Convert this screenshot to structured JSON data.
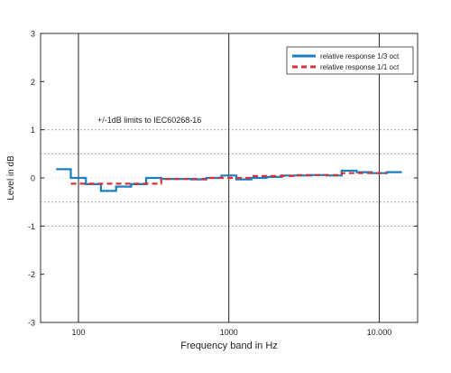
{
  "chart_data": {
    "type": "line",
    "xscale": "log",
    "xlabel": "Frequency band in Hz",
    "ylabel": "Level in dB",
    "xlim": [
      56,
      18000
    ],
    "ylim": [
      -3,
      3
    ],
    "x_ticks": [
      {
        "value": 100,
        "label": "100"
      },
      {
        "value": 1000,
        "label": "1000"
      },
      {
        "value": 10000,
        "label": "10.000"
      }
    ],
    "y_ticks": [
      {
        "value": 3,
        "label": "3"
      },
      {
        "value": 2,
        "label": "2"
      },
      {
        "value": 1,
        "label": "1"
      },
      {
        "value": 0,
        "label": "0"
      },
      {
        "value": -1,
        "label": "-1"
      },
      {
        "value": -2,
        "label": "-2"
      },
      {
        "value": -3,
        "label": "-3"
      }
    ],
    "grid": "dotted",
    "dotted_grid_y": [
      1,
      0.5,
      -0.5,
      -1
    ],
    "limit_annotation": "+/-1dB limits to IEC60268-16",
    "legend_position": "top-right",
    "series": [
      {
        "name": "relative response 1/3 oct",
        "color": "#1a7fc1",
        "style": "solid",
        "step_edges": [
          71,
          89,
          112,
          141,
          178,
          224,
          282,
          355,
          447,
          562,
          708,
          891,
          1122,
          1413,
          1778,
          2239,
          2818,
          3548,
          4467,
          5623,
          7079,
          8913,
          11220,
          14130
        ],
        "values": [
          0.18,
          0.0,
          -0.13,
          -0.27,
          -0.18,
          -0.13,
          0.0,
          -0.02,
          -0.02,
          -0.03,
          0.0,
          0.05,
          -0.03,
          0.0,
          0.02,
          0.05,
          0.05,
          0.06,
          0.05,
          0.15,
          0.12,
          0.1,
          0.12
        ]
      },
      {
        "name": "relative response 1/1 oct",
        "color": "#d8323a",
        "style": "dashed",
        "step_edges": [
          89,
          178,
          355,
          708,
          1413,
          2818,
          5623,
          11220
        ],
        "values": [
          -0.12,
          -0.12,
          -0.02,
          0.0,
          0.04,
          0.06,
          0.1
        ]
      }
    ]
  }
}
